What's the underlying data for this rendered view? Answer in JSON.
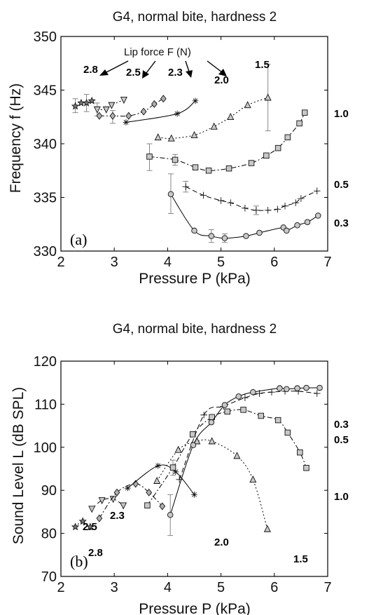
{
  "chart_data": [
    {
      "type": "scatter",
      "title": "G4, normal bite, hardness 2",
      "xlabel": "Pressure P (kPa)",
      "ylabel": "Frequency f (Hz)",
      "xlim": [
        2,
        7
      ],
      "ylim": [
        330,
        350
      ],
      "xticks": [
        "2",
        "3",
        "4",
        "5",
        "6",
        "7"
      ],
      "yticks": [
        "330",
        "335",
        "340",
        "345",
        "350"
      ],
      "grid": false,
      "panel_label": "(a)",
      "annotation": "Lip force F (N)",
      "series": [
        {
          "name": "2.8",
          "marker": "star",
          "line": "none",
          "x": [
            2.27,
            2.38,
            2.48,
            2.58
          ],
          "y": [
            343.5,
            343.8,
            343.8,
            344.0
          ],
          "errors": [
            {
              "x": 2.27,
              "y": 343.5,
              "lo": 342.9,
              "hi": 344.2
            },
            {
              "x": 2.48,
              "y": 343.8,
              "lo": 343.0,
              "hi": 344.6
            }
          ]
        },
        {
          "name": "2.5",
          "marker": "triangle-down",
          "line": "dotted",
          "x": [
            2.68,
            2.85,
            2.95,
            3.18
          ],
          "y": [
            343.2,
            343.2,
            343.6,
            344.1
          ],
          "errors": [
            {
              "x": 2.68,
              "y": 343.2,
              "lo": 342.6,
              "hi": 343.8
            }
          ]
        },
        {
          "name": "2.3",
          "marker": "diamond",
          "line": "dash-dot",
          "x": [
            2.72,
            2.97,
            3.27,
            3.55,
            3.75,
            3.92
          ],
          "y": [
            342.6,
            342.6,
            342.6,
            343.0,
            343.7,
            344.2
          ],
          "errors": [
            {
              "x": 2.97,
              "y": 342.6,
              "lo": 341.9,
              "hi": 343.1
            }
          ]
        },
        {
          "name": "2.0",
          "marker": "asterisk",
          "line": "solid",
          "x": [
            3.22,
            4.18,
            4.52
          ],
          "y": [
            342.0,
            342.8,
            344.0
          ],
          "errors": []
        },
        {
          "name": "1.5",
          "marker": "triangle",
          "line": "dotted",
          "x": [
            3.82,
            4.07,
            4.5,
            4.87,
            5.18,
            5.5,
            5.88
          ],
          "y": [
            340.6,
            340.5,
            340.8,
            341.6,
            342.5,
            343.6,
            344.3
          ],
          "errors": [
            {
              "x": 5.88,
              "y": 344.3,
              "lo": 341.2,
              "hi": 347.4
            }
          ]
        },
        {
          "name": "1.0",
          "marker": "square",
          "line": "dash-dot",
          "x": [
            3.66,
            4.14,
            4.52,
            4.77,
            5.15,
            5.57,
            5.85,
            6.07,
            6.25,
            6.47,
            6.57
          ],
          "y": [
            338.8,
            338.5,
            337.8,
            337.5,
            337.7,
            338.2,
            338.9,
            339.6,
            340.6,
            341.9,
            342.9
          ],
          "errors": [
            {
              "x": 3.66,
              "y": 338.8,
              "lo": 337.5,
              "hi": 340.0
            },
            {
              "x": 4.14,
              "y": 338.5,
              "lo": 338.0,
              "hi": 339.0
            }
          ]
        },
        {
          "name": "0.5",
          "marker": "plus",
          "line": "dashed",
          "x": [
            4.34,
            4.67,
            5.0,
            5.18,
            5.45,
            5.66,
            5.88,
            6.06,
            6.2,
            6.4,
            6.5,
            6.8
          ],
          "y": [
            336.0,
            335.2,
            334.7,
            334.5,
            334.0,
            333.8,
            333.8,
            333.9,
            334.2,
            334.5,
            334.9,
            335.6
          ],
          "errors": [
            {
              "x": 4.34,
              "y": 336.0,
              "lo": 335.5,
              "hi": 336.5
            },
            {
              "x": 5.66,
              "y": 333.8,
              "lo": 333.4,
              "hi": 334.2
            }
          ]
        },
        {
          "name": "0.3",
          "marker": "circle",
          "line": "solid",
          "x": [
            4.06,
            4.5,
            4.82,
            5.07,
            5.47,
            5.72,
            6.17,
            6.23,
            6.43,
            6.62,
            6.82
          ],
          "y": [
            335.3,
            331.9,
            331.4,
            331.2,
            331.4,
            331.7,
            332.2,
            331.9,
            332.4,
            332.7,
            333.3
          ],
          "errors": [
            {
              "x": 4.06,
              "y": 335.3,
              "lo": 333.5,
              "hi": 337.2
            },
            {
              "x": 4.82,
              "y": 331.4,
              "lo": 330.8,
              "hi": 332.0
            },
            {
              "x": 5.07,
              "y": 331.2,
              "lo": 330.8,
              "hi": 331.6
            }
          ]
        }
      ]
    },
    {
      "type": "scatter",
      "title": "G4, normal bite, hardness 2",
      "xlabel": "Pressure P (kPa)",
      "ylabel": "Sound Level L (dB SPL)",
      "xlim": [
        2,
        7
      ],
      "ylim": [
        70,
        120
      ],
      "xticks": [
        "2",
        "3",
        "4",
        "5",
        "6",
        "7"
      ],
      "yticks": [
        "70",
        "80",
        "90",
        "100",
        "110",
        "120"
      ],
      "grid": false,
      "panel_label": "(b)",
      "series": [
        {
          "name": "2.8",
          "marker": "star",
          "line": "dotted",
          "x": [
            2.27,
            2.41,
            2.55
          ],
          "y": [
            81.5,
            82.8,
            81.5
          ],
          "errors": []
        },
        {
          "name": "2.5",
          "marker": "triangle-down",
          "line": "dashed",
          "x": [
            2.58,
            2.77,
            2.98,
            3.17
          ],
          "y": [
            85.7,
            87.7,
            88.0,
            86.5
          ],
          "errors": []
        },
        {
          "name": "2.3",
          "marker": "diamond",
          "line": "dash-dot",
          "x": [
            2.72,
            3.05,
            3.4,
            3.65,
            3.9
          ],
          "y": [
            83.5,
            89.5,
            91.5,
            89.5,
            86.3
          ],
          "errors": []
        },
        {
          "name": "2.0",
          "marker": "asterisk",
          "line": "solid",
          "x": [
            3.25,
            3.82,
            4.15,
            4.5
          ],
          "y": [
            90.5,
            95.7,
            94.3,
            89.0
          ],
          "errors": []
        },
        {
          "name": "1.5",
          "marker": "triangle",
          "line": "dotted",
          "x": [
            3.8,
            4.2,
            4.55,
            4.83,
            5.3,
            5.6,
            5.87
          ],
          "y": [
            92.2,
            99.4,
            101.4,
            101.4,
            98.0,
            92.5,
            81.0
          ],
          "errors": []
        },
        {
          "name": "1.0",
          "marker": "square",
          "line": "dash-dot",
          "x": [
            3.62,
            4.1,
            4.47,
            4.83,
            5.12,
            5.42,
            5.75,
            6.07,
            6.25,
            6.48,
            6.6
          ],
          "y": [
            86.5,
            95.3,
            103.0,
            107.0,
            108.3,
            108.7,
            107.3,
            106.3,
            103.4,
            98.8,
            95.2
          ],
          "errors": [
            {
              "x": 4.1,
              "y": 95.3,
              "lo": 93.5,
              "hi": 97.0
            }
          ]
        },
        {
          "name": "0.5",
          "marker": "plus",
          "line": "dashed",
          "x": [
            4.22,
            4.68,
            5.05,
            5.45,
            5.72,
            5.95,
            6.2,
            6.45,
            6.8
          ],
          "y": [
            92.5,
            107.5,
            109.5,
            111.5,
            112.5,
            112.8,
            113.0,
            113.0,
            112.5
          ],
          "errors": []
        },
        {
          "name": "0.3",
          "marker": "circle",
          "line": "solid",
          "x": [
            4.05,
            4.48,
            4.82,
            5.07,
            5.33,
            5.6,
            6.1,
            6.23,
            6.43,
            6.6,
            6.85
          ],
          "y": [
            84.3,
            100.5,
            105.8,
            109.8,
            111.8,
            112.8,
            113.7,
            113.5,
            113.7,
            113.8,
            113.8
          ],
          "errors": [
            {
              "x": 4.05,
              "y": 84.3,
              "lo": 79.5,
              "hi": 89.0
            }
          ]
        }
      ]
    }
  ]
}
